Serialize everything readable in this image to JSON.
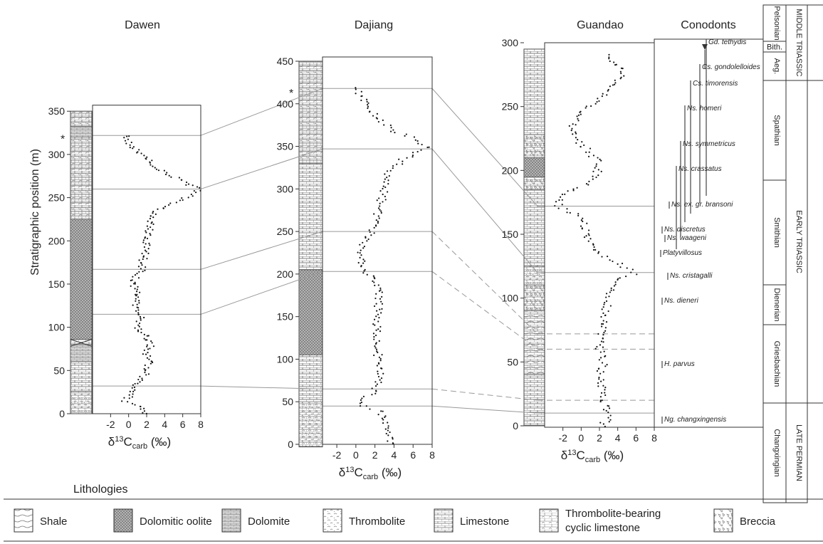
{
  "figure": {
    "lithologies_title": "Lithologies",
    "legend": [
      {
        "name": "Shale",
        "pattern": "shale"
      },
      {
        "name": "Dolomitic oolite",
        "pattern": "oolite"
      },
      {
        "name": "Dolomite",
        "pattern": "dolomite"
      },
      {
        "name": "Thrombolite",
        "pattern": "thrombolite"
      },
      {
        "name": "Limestone",
        "pattern": "limestone"
      },
      {
        "name": "Thrombolite-bearing cyclic limestone",
        "lines": [
          "Thrombolite-bearing",
          "cyclic limestone"
        ],
        "pattern": "cyclic"
      },
      {
        "name": "Breccia",
        "pattern": "breccia"
      }
    ],
    "conodont_panel": {
      "title": "Conodonts",
      "taxa": [
        {
          "name": "Gd. tethydis"
        },
        {
          "name": "Cs. gondolelloides"
        },
        {
          "name": "Cs. timorensis"
        },
        {
          "name": "Ns. homeri"
        },
        {
          "name": "Ns. symmetricus"
        },
        {
          "name": "Ns. crassatus"
        },
        {
          "name": "Ns. ex. gr. bransoni"
        },
        {
          "name": "Ns. discretus"
        },
        {
          "name": "Ns. waageni"
        },
        {
          "name": "Platyvillosus"
        },
        {
          "name": "Ns. cristagalli"
        },
        {
          "name": "Ns. dieneri"
        },
        {
          "name": "H. parvus"
        },
        {
          "name": "Ng. changxingensis"
        }
      ],
      "stages": [
        "Pelsonian",
        "Bith.",
        "Aeg.",
        "Spathian",
        "Smithian",
        "Dienerian",
        "Griesbachian",
        "Changxingian"
      ],
      "series": [
        "MIDDLE TRIASSIC",
        "EARLY TRIASSIC",
        "LATE PERMIAN"
      ]
    }
  },
  "chart_data": [
    {
      "type": "scatter",
      "title": "Dawen",
      "xlabel": "δ13Ccarb (‰)",
      "ylabel": "Stratigraphic position (m)",
      "xlim": [
        -4,
        8
      ],
      "ylim": [
        0,
        365
      ],
      "xticks": [
        -2,
        0,
        2,
        4,
        6,
        8
      ],
      "yticks": [
        0,
        50,
        100,
        150,
        200,
        250,
        300,
        350
      ],
      "star_at_m": 320,
      "correlation_levels_m": [
        322,
        260,
        167,
        115,
        32
      ],
      "profile": [
        [
          2.0,
          0
        ],
        [
          1.5,
          8
        ],
        [
          -0.5,
          15
        ],
        [
          0.5,
          25
        ],
        [
          1.0,
          35
        ],
        [
          1.8,
          45
        ],
        [
          2.0,
          55
        ],
        [
          2.5,
          62
        ],
        [
          2.0,
          70
        ],
        [
          2.5,
          80
        ],
        [
          2.0,
          90
        ],
        [
          1.0,
          100
        ],
        [
          1.5,
          110
        ],
        [
          1.5,
          115
        ],
        [
          0.8,
          125
        ],
        [
          0.8,
          140
        ],
        [
          0.5,
          155
        ],
        [
          1.5,
          165
        ],
        [
          1.5,
          175
        ],
        [
          2.0,
          190
        ],
        [
          2.0,
          205
        ],
        [
          2.5,
          220
        ],
        [
          2.5,
          230
        ],
        [
          4.0,
          240
        ],
        [
          6.0,
          248
        ],
        [
          7.5,
          255
        ],
        [
          7.6,
          260
        ],
        [
          6.0,
          270
        ],
        [
          4.0,
          280
        ],
        [
          2.5,
          290
        ],
        [
          1.5,
          300
        ],
        [
          0.3,
          310
        ],
        [
          -0.2,
          322
        ]
      ]
    },
    {
      "type": "scatter",
      "title": "Dajiang",
      "xlabel": "δ13Ccarb (‰)",
      "xlim": [
        -3.5,
        8
      ],
      "ylim": [
        0,
        455
      ],
      "xticks": [
        -2,
        0,
        2,
        4,
        6,
        8
      ],
      "yticks": [
        0,
        50,
        100,
        150,
        200,
        250,
        300,
        350,
        400,
        450
      ],
      "star_at_m": 415,
      "correlation_levels_m": [
        418,
        347,
        250,
        203,
        65,
        45
      ],
      "profile": [
        [
          3.5,
          0
        ],
        [
          3.5,
          20
        ],
        [
          2.5,
          40
        ],
        [
          1.0,
          45
        ],
        [
          0.5,
          50
        ],
        [
          1.5,
          58
        ],
        [
          2.0,
          65
        ],
        [
          2.5,
          80
        ],
        [
          2.3,
          100
        ],
        [
          2.3,
          120
        ],
        [
          2.2,
          140
        ],
        [
          2.3,
          160
        ],
        [
          2.5,
          180
        ],
        [
          2.0,
          195
        ],
        [
          1.0,
          203
        ],
        [
          0.5,
          215
        ],
        [
          0.5,
          230
        ],
        [
          1.5,
          245
        ],
        [
          2.0,
          260
        ],
        [
          2.5,
          280
        ],
        [
          3.0,
          300
        ],
        [
          3.5,
          320
        ],
        [
          5.0,
          335
        ],
        [
          7.5,
          348
        ],
        [
          7.0,
          352
        ],
        [
          6.0,
          360
        ],
        [
          4.0,
          368
        ],
        [
          2.5,
          380
        ],
        [
          1.0,
          400
        ],
        [
          0.5,
          410
        ],
        [
          0.2,
          418
        ]
      ]
    },
    {
      "type": "scatter",
      "title": "Guandao",
      "xlabel": "δ13Ccarb (‰)",
      "xlim": [
        -4,
        8
      ],
      "ylim": [
        0,
        300
      ],
      "xticks": [
        -2,
        0,
        2,
        4,
        6,
        8
      ],
      "yticks": [
        0,
        50,
        100,
        150,
        200,
        250,
        300
      ],
      "correlation_levels_m": [
        172,
        120,
        72,
        60,
        20
      ],
      "profile": [
        [
          2.5,
          3
        ],
        [
          3.0,
          0
        ],
        [
          2.0,
          40
        ],
        [
          2.5,
          50
        ],
        [
          2.0,
          60
        ],
        [
          2.2,
          72
        ],
        [
          2.5,
          85
        ],
        [
          3.0,
          100
        ],
        [
          3.2,
          110
        ],
        [
          4.0,
          115
        ],
        [
          6.0,
          120
        ],
        [
          1.5,
          136
        ],
        [
          0.8,
          145
        ],
        [
          0.5,
          155
        ],
        [
          -0.5,
          165
        ],
        [
          -2.5,
          172
        ],
        [
          -2.0,
          180
        ],
        [
          1.5,
          193
        ],
        [
          1.8,
          200
        ],
        [
          2.0,
          205
        ],
        [
          -0.5,
          225
        ],
        [
          -1.0,
          233
        ],
        [
          -0.5,
          240
        ],
        [
          0.5,
          248
        ],
        [
          1.5,
          255
        ],
        [
          3.0,
          262
        ],
        [
          4.0,
          270
        ],
        [
          4.5,
          276
        ],
        [
          4.0,
          282
        ],
        [
          3.0,
          290
        ]
      ]
    }
  ]
}
